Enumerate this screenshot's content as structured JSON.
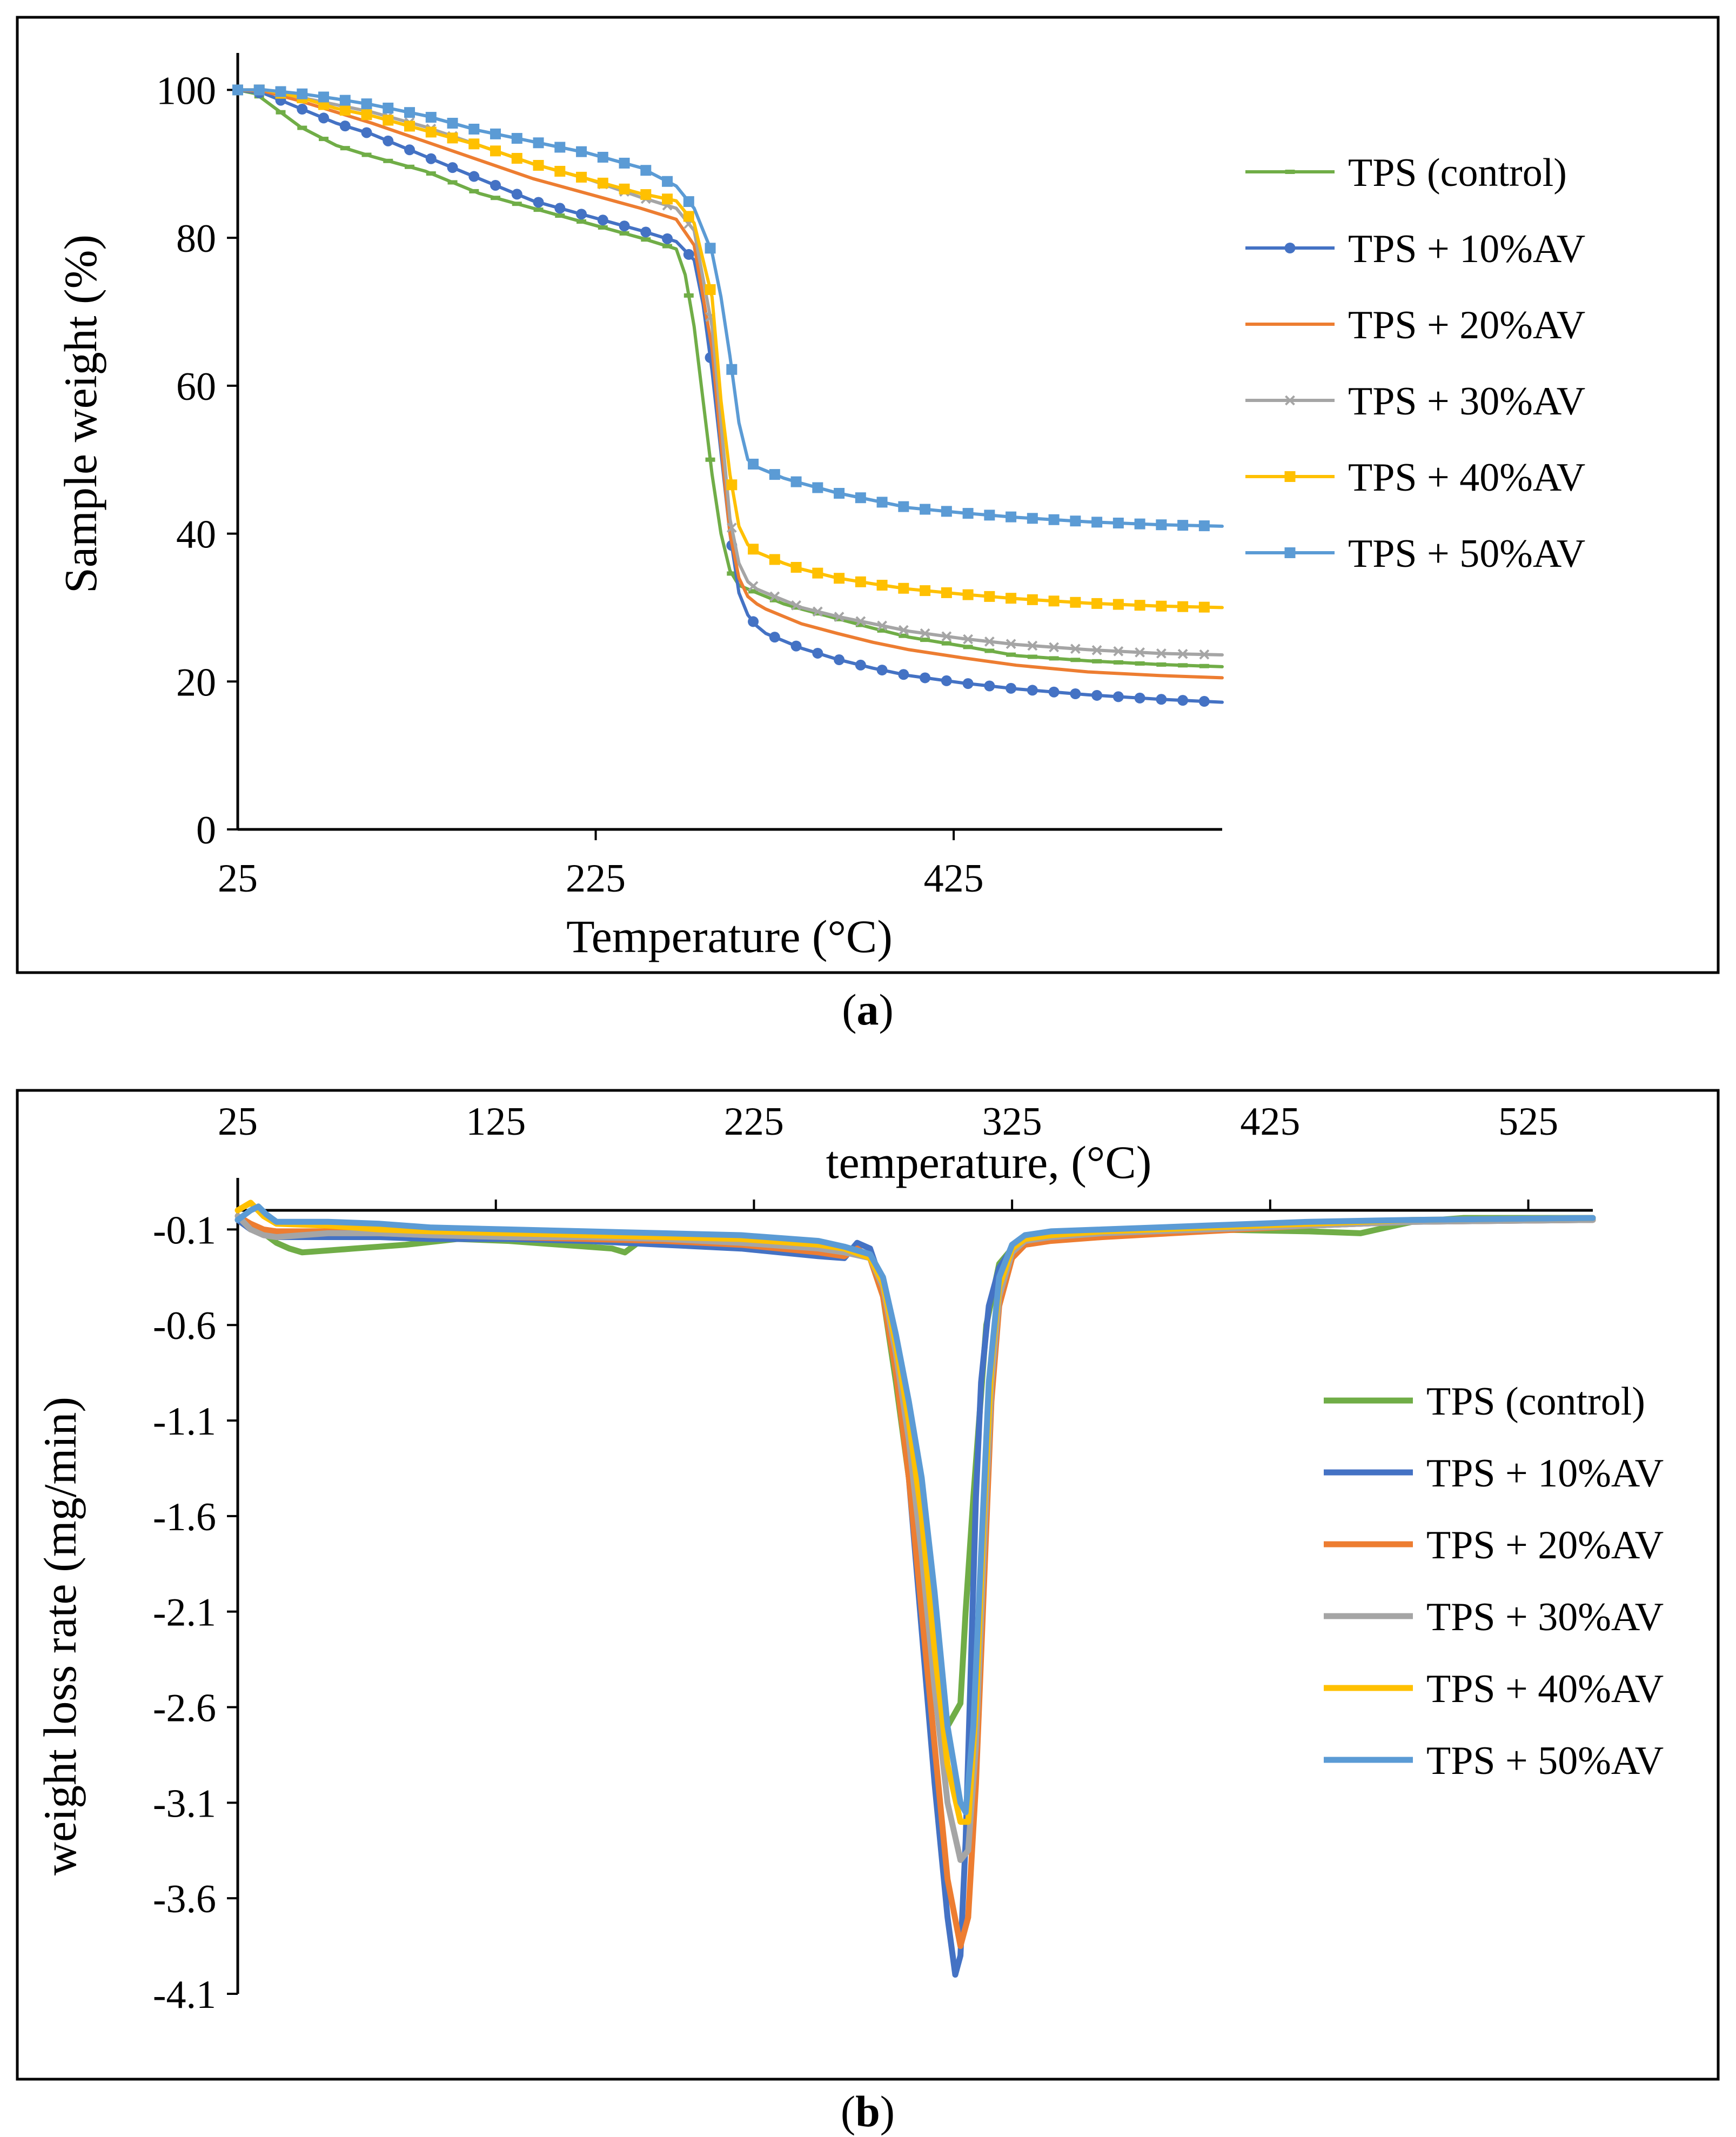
{
  "colors": {
    "green": "#70AD47",
    "blue": "#4472C4",
    "orange": "#ED7D31",
    "gray": "#A5A5A5",
    "yellow": "#FFC000",
    "lightblue": "#5B9BD5"
  },
  "chart_data": [
    {
      "id": "a",
      "type": "line",
      "panel_label": "a",
      "xlabel": "Temperature (°C)",
      "ylabel": "Sample weight (%)",
      "xlim": [
        25,
        575
      ],
      "ylim": [
        0,
        105
      ],
      "xticks": [
        25,
        225,
        425
      ],
      "xtick_labels": [
        "25",
        "225",
        "425"
      ],
      "yticks": [
        0,
        20,
        40,
        60,
        80,
        100
      ],
      "ytick_labels": [
        "0",
        "20",
        "40",
        "60",
        "80",
        "100"
      ],
      "legend_position": "right",
      "series": [
        {
          "name": "TPS (control)",
          "color": "#70AD47",
          "marker": "dash",
          "x": [
            25,
            35,
            60,
            80,
            100,
            130,
            160,
            190,
            220,
            250,
            270,
            275,
            280,
            285,
            290,
            295,
            300,
            305,
            310,
            315,
            320,
            330,
            340,
            360,
            380,
            400,
            430,
            460,
            500,
            540,
            575
          ],
          "y": [
            100,
            99.5,
            95,
            92.5,
            91,
            89,
            86,
            84,
            82,
            80,
            78.5,
            75,
            68,
            58,
            48,
            40,
            35,
            33,
            32.5,
            32,
            31.5,
            30.5,
            29.8,
            28.5,
            27.2,
            26,
            24.8,
            23.5,
            22.8,
            22.3,
            22
          ]
        },
        {
          "name": "TPS + 10%AV",
          "color": "#4472C4",
          "marker": "circle",
          "x": [
            25,
            40,
            60,
            80,
            100,
            130,
            160,
            190,
            220,
            250,
            270,
            280,
            285,
            290,
            295,
            300,
            305,
            310,
            315,
            320,
            330,
            340,
            360,
            380,
            400,
            430,
            460,
            500,
            540,
            575
          ],
          "y": [
            100,
            99.5,
            97.5,
            95.5,
            94,
            91,
            88,
            85,
            83,
            81,
            79.5,
            77,
            71,
            62,
            51,
            40,
            32,
            29,
            27.5,
            26.5,
            25.5,
            24.5,
            23,
            21.8,
            20.8,
            19.8,
            19,
            18.2,
            17.6,
            17.2
          ]
        },
        {
          "name": "TPS + 20%AV",
          "color": "#ED7D31",
          "marker": "none",
          "x": [
            25,
            40,
            60,
            80,
            100,
            130,
            160,
            190,
            220,
            250,
            270,
            280,
            290,
            295,
            300,
            305,
            310,
            315,
            320,
            330,
            340,
            360,
            380,
            400,
            430,
            460,
            500,
            540,
            575
          ],
          "y": [
            100,
            99.8,
            98.5,
            97,
            95.5,
            93,
            90.5,
            88,
            86,
            84,
            82.5,
            79,
            65,
            52,
            40,
            34,
            31.5,
            30.5,
            29.8,
            28.8,
            27.8,
            26.5,
            25.3,
            24.3,
            23.2,
            22.2,
            21.3,
            20.8,
            20.5
          ]
        },
        {
          "name": "TPS + 30%AV",
          "color": "#A5A5A5",
          "marker": "x",
          "x": [
            25,
            40,
            60,
            80,
            100,
            130,
            160,
            190,
            220,
            250,
            270,
            280,
            290,
            295,
            300,
            305,
            310,
            315,
            320,
            330,
            340,
            360,
            380,
            400,
            430,
            460,
            500,
            540,
            575
          ],
          "y": [
            100,
            100,
            99,
            98,
            97,
            95,
            92.5,
            90,
            88,
            85.5,
            84,
            81,
            68,
            55,
            42,
            36,
            33.5,
            32.5,
            32,
            31,
            30,
            28.8,
            27.8,
            26.8,
            25.8,
            25,
            24.3,
            23.8,
            23.6
          ]
        },
        {
          "name": "TPS + 40%AV",
          "color": "#FFC000",
          "marker": "square",
          "x": [
            25,
            40,
            60,
            80,
            100,
            130,
            160,
            190,
            220,
            250,
            270,
            280,
            290,
            295,
            300,
            305,
            310,
            315,
            320,
            330,
            340,
            360,
            380,
            400,
            430,
            460,
            500,
            540,
            575
          ],
          "y": [
            100,
            100,
            99,
            97.5,
            96.5,
            94.5,
            92.5,
            90,
            88,
            86,
            85,
            82,
            72,
            58,
            48,
            41,
            38.5,
            37.5,
            37,
            36,
            35.2,
            34,
            33.2,
            32.5,
            31.8,
            31.2,
            30.6,
            30.2,
            30
          ]
        },
        {
          "name": "TPS + 50%AV",
          "color": "#5B9BD5",
          "marker": "square",
          "x": [
            25,
            40,
            60,
            80,
            100,
            130,
            160,
            190,
            220,
            250,
            270,
            280,
            290,
            295,
            300,
            305,
            310,
            315,
            320,
            330,
            340,
            360,
            380,
            400,
            430,
            460,
            500,
            540,
            575
          ],
          "y": [
            100,
            100,
            99.5,
            98.8,
            98,
            96.5,
            94.5,
            93,
            91.5,
            89.5,
            87,
            84,
            78,
            72,
            64,
            55,
            50,
            49,
            48.5,
            47.5,
            46.8,
            45.5,
            44.5,
            43.5,
            42.8,
            42.2,
            41.6,
            41.2,
            41
          ]
        }
      ]
    },
    {
      "id": "b",
      "type": "line",
      "panel_label": "b",
      "xlabel": "temperature, (°C)",
      "ylabel": "weight loss rate (mg/min)",
      "xlim": [
        25,
        550
      ],
      "ylim": [
        -4.1,
        0.0
      ],
      "xticks": [
        25,
        125,
        225,
        325,
        425,
        525
      ],
      "xtick_labels": [
        "25",
        "125",
        "225",
        "325",
        "425",
        "525"
      ],
      "yticks": [
        -0.1,
        -0.6,
        -1.1,
        -1.6,
        -2.1,
        -2.6,
        -3.1,
        -3.6,
        -4.1
      ],
      "ytick_labels": [
        "-0.1",
        "-0.6",
        "-1.1",
        "-1.6",
        "-2.1",
        "-2.6",
        "-3.1",
        "-3.6",
        "-4.1"
      ],
      "x_axis_position": "top",
      "legend_position": "right",
      "series": [
        {
          "name": "TPS (control)",
          "color": "#70AD47",
          "x": [
            25,
            30,
            35,
            40,
            45,
            50,
            60,
            70,
            90,
            110,
            130,
            150,
            170,
            175,
            180,
            190,
            210,
            230,
            260,
            270,
            275,
            280,
            285,
            290,
            295,
            300,
            305,
            307,
            310,
            315,
            320,
            325,
            330,
            340,
            360,
            400,
            440,
            460,
            470,
            480,
            500,
            550
          ],
          "y": [
            -0.05,
            -0.08,
            -0.12,
            -0.17,
            -0.2,
            -0.22,
            -0.21,
            -0.2,
            -0.18,
            -0.15,
            -0.16,
            -0.18,
            -0.2,
            -0.22,
            -0.17,
            -0.15,
            -0.16,
            -0.18,
            -0.2,
            -0.25,
            -0.45,
            -0.9,
            -1.4,
            -1.8,
            -2.3,
            -2.7,
            -2.58,
            -2.1,
            -1.5,
            -0.6,
            -0.28,
            -0.2,
            -0.17,
            -0.15,
            -0.13,
            -0.1,
            -0.11,
            -0.12,
            -0.09,
            -0.06,
            -0.04,
            -0.04
          ]
        },
        {
          "name": "TPS + 10%AV",
          "color": "#4472C4",
          "x": [
            25,
            30,
            35,
            40,
            60,
            80,
            100,
            130,
            160,
            190,
            220,
            250,
            260,
            265,
            270,
            275,
            280,
            285,
            290,
            295,
            300,
            303,
            305,
            307,
            309,
            311,
            313,
            316,
            320,
            325,
            330,
            340,
            360,
            400,
            440,
            480,
            550
          ],
          "y": [
            -0.05,
            -0.1,
            -0.12,
            -0.14,
            -0.14,
            -0.14,
            -0.15,
            -0.15,
            -0.16,
            -0.18,
            -0.2,
            -0.24,
            -0.25,
            -0.17,
            -0.2,
            -0.4,
            -0.8,
            -1.4,
            -2.2,
            -3.0,
            -3.7,
            -4.0,
            -3.9,
            -3.3,
            -2.4,
            -1.5,
            -0.9,
            -0.5,
            -0.3,
            -0.2,
            -0.17,
            -0.15,
            -0.13,
            -0.1,
            -0.08,
            -0.06,
            -0.05
          ]
        },
        {
          "name": "TPS + 20%AV",
          "color": "#ED7D31",
          "x": [
            25,
            30,
            35,
            40,
            60,
            80,
            100,
            130,
            160,
            190,
            220,
            250,
            260,
            265,
            270,
            275,
            280,
            285,
            290,
            295,
            300,
            305,
            308,
            311,
            314,
            317,
            320,
            325,
            330,
            340,
            360,
            400,
            440,
            480,
            550
          ],
          "y": [
            -0.03,
            -0.07,
            -0.1,
            -0.11,
            -0.11,
            -0.12,
            -0.13,
            -0.14,
            -0.15,
            -0.16,
            -0.18,
            -0.22,
            -0.24,
            -0.2,
            -0.25,
            -0.45,
            -0.85,
            -1.4,
            -2.1,
            -2.8,
            -3.5,
            -3.85,
            -3.7,
            -3.0,
            -2.0,
            -1.0,
            -0.5,
            -0.25,
            -0.18,
            -0.16,
            -0.14,
            -0.11,
            -0.08,
            -0.06,
            -0.05
          ]
        },
        {
          "name": "TPS + 30%AV",
          "color": "#A5A5A5",
          "x": [
            25,
            30,
            35,
            40,
            60,
            80,
            100,
            130,
            160,
            190,
            220,
            250,
            260,
            270,
            275,
            280,
            285,
            290,
            295,
            300,
            305,
            308,
            311,
            314,
            317,
            320,
            325,
            330,
            340,
            360,
            400,
            440,
            480,
            550
          ],
          "y": [
            -0.03,
            -0.1,
            -0.13,
            -0.14,
            -0.12,
            -0.12,
            -0.13,
            -0.14,
            -0.14,
            -0.15,
            -0.17,
            -0.2,
            -0.22,
            -0.25,
            -0.4,
            -0.75,
            -1.2,
            -1.8,
            -2.5,
            -3.1,
            -3.4,
            -3.35,
            -2.8,
            -1.8,
            -0.9,
            -0.45,
            -0.22,
            -0.16,
            -0.14,
            -0.12,
            -0.1,
            -0.08,
            -0.06,
            -0.05
          ]
        },
        {
          "name": "TPS + 40%AV",
          "color": "#FFC000",
          "x": [
            25,
            30,
            35,
            40,
            60,
            80,
            100,
            130,
            160,
            190,
            220,
            250,
            260,
            270,
            275,
            280,
            285,
            290,
            295,
            300,
            305,
            308,
            311,
            314,
            317,
            320,
            325,
            330,
            340,
            360,
            400,
            440,
            480,
            550
          ],
          "y": [
            0.0,
            0.04,
            -0.03,
            -0.07,
            -0.08,
            -0.1,
            -0.11,
            -0.12,
            -0.13,
            -0.14,
            -0.15,
            -0.18,
            -0.2,
            -0.25,
            -0.38,
            -0.7,
            -1.1,
            -1.6,
            -2.3,
            -2.9,
            -3.2,
            -3.2,
            -2.6,
            -1.6,
            -0.8,
            -0.4,
            -0.2,
            -0.15,
            -0.13,
            -0.11,
            -0.09,
            -0.07,
            -0.05,
            -0.04
          ]
        },
        {
          "name": "TPS + 50%AV",
          "color": "#5B9BD5",
          "x": [
            25,
            30,
            33,
            36,
            40,
            60,
            80,
            100,
            130,
            160,
            190,
            220,
            250,
            260,
            270,
            275,
            280,
            285,
            290,
            295,
            300,
            305,
            307,
            310,
            313,
            316,
            320,
            325,
            330,
            340,
            360,
            400,
            440,
            480,
            550
          ],
          "y": [
            -0.05,
            0.0,
            0.02,
            -0.02,
            -0.06,
            -0.06,
            -0.07,
            -0.09,
            -0.1,
            -0.11,
            -0.12,
            -0.13,
            -0.16,
            -0.19,
            -0.23,
            -0.35,
            -0.65,
            -1.0,
            -1.4,
            -2.0,
            -2.7,
            -3.1,
            -3.15,
            -2.7,
            -1.8,
            -0.9,
            -0.35,
            -0.18,
            -0.13,
            -0.11,
            -0.1,
            -0.08,
            -0.06,
            -0.05,
            -0.04
          ]
        }
      ]
    }
  ]
}
